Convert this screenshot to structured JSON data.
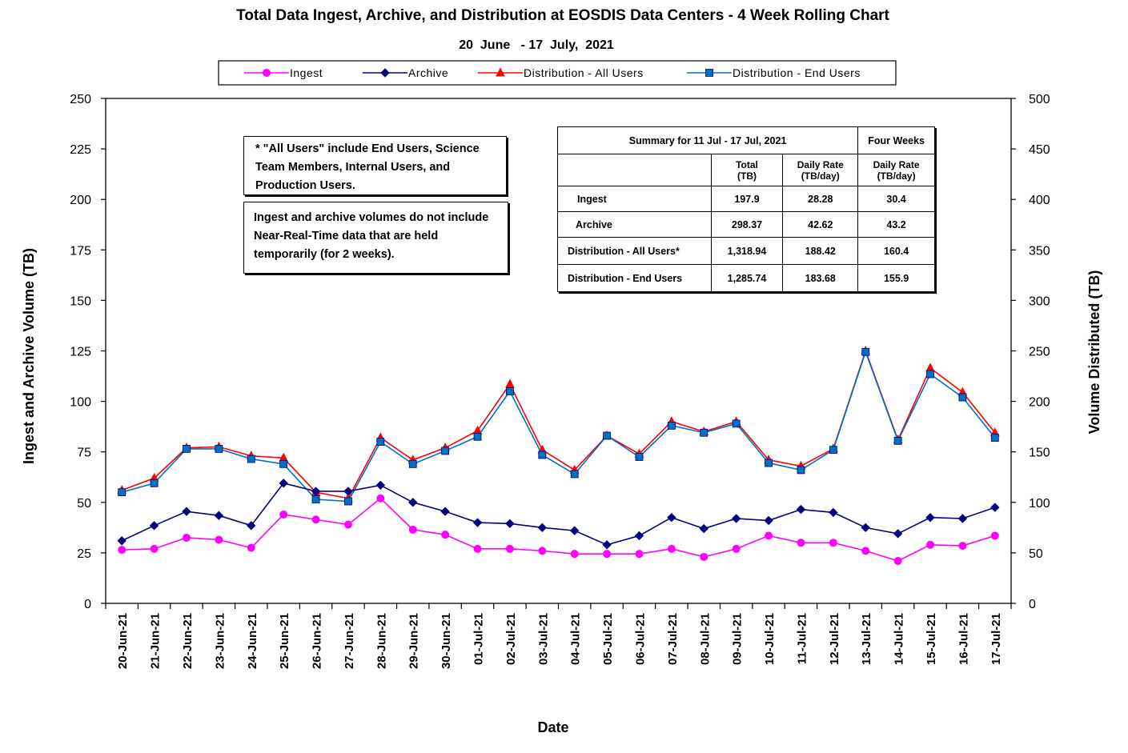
{
  "chart_data": {
    "type": "line",
    "title": "Total Data Ingest, Archive, and  Distribution at EOSDIS Data Centers - 4 Week Rolling Chart",
    "subtitle": "20  June   - 17  July,  2021",
    "xlabel": "Date",
    "ylabel": "Ingest and Archive Volume (TB)",
    "y2label": "Volume Distributed (TB)",
    "ylim": [
      0,
      250
    ],
    "yticks": [
      0,
      25,
      50,
      75,
      100,
      125,
      150,
      175,
      200,
      225,
      250
    ],
    "y2lim": [
      0,
      500
    ],
    "y2ticks": [
      0,
      50,
      100,
      150,
      200,
      250,
      300,
      350,
      400,
      450,
      500
    ],
    "grid": false,
    "legend_position": "top",
    "categories": [
      "20-Jun-21",
      "21-Jun-21",
      "22-Jun-21",
      "23-Jun-21",
      "24-Jun-21",
      "25-Jun-21",
      "26-Jun-21",
      "27-Jun-21",
      "28-Jun-21",
      "29-Jun-21",
      "30-Jun-21",
      "01-Jul-21",
      "02-Jul-21",
      "03-Jul-21",
      "04-Jul-21",
      "05-Jul-21",
      "06-Jul-21",
      "07-Jul-21",
      "08-Jul-21",
      "09-Jul-21",
      "10-Jul-21",
      "11-Jul-21",
      "12-Jul-21",
      "13-Jul-21",
      "14-Jul-21",
      "15-Jul-21",
      "16-Jul-21",
      "17-Jul-21"
    ],
    "series": [
      {
        "name": "Ingest",
        "axis": "left",
        "color": "#ff00ff",
        "marker": "circle",
        "values": [
          26.5,
          27,
          32.5,
          31.5,
          27.5,
          44,
          41.5,
          39,
          52,
          36.5,
          34,
          27,
          27,
          26,
          24.5,
          24.5,
          24.5,
          27,
          23,
          27,
          33.5,
          30,
          30,
          26,
          21,
          29,
          28.5,
          33.5
        ]
      },
      {
        "name": "Archive",
        "axis": "left",
        "color": "#000080",
        "marker": "diamond",
        "values": [
          31,
          38.5,
          45.5,
          43.5,
          38.5,
          59.5,
          55.5,
          55.5,
          58.5,
          50,
          45.5,
          40,
          39.5,
          37.5,
          36,
          29,
          33.5,
          42.5,
          37,
          42,
          41,
          46.5,
          45,
          37.5,
          34.5,
          42.5,
          42,
          47.5
        ]
      },
      {
        "name": "Distribution - All Users",
        "axis": "right",
        "color": "#ff0000",
        "marker": "triangle",
        "values": [
          112,
          124,
          154,
          155,
          146,
          144,
          110,
          104,
          164,
          142,
          154,
          171,
          217,
          152,
          132,
          166,
          148,
          180,
          170,
          180,
          142,
          136,
          153,
          250,
          162,
          233,
          209,
          169
        ]
      },
      {
        "name": "Distribution - End Users",
        "axis": "right",
        "color": "#0070c0",
        "marker": "square",
        "values": [
          110,
          119,
          153,
          153,
          143,
          138,
          103,
          101,
          160,
          138,
          151,
          165,
          210,
          147,
          128,
          166,
          145,
          176,
          169,
          178,
          139,
          132,
          152,
          249,
          161,
          227,
          204,
          164
        ]
      }
    ],
    "annotations": [
      "* \"All Users\" include End Users, Science Team Members,  Internal Users, and Production Users.",
      "Ingest and archive volumes do not include Near-Real-Time data that are held temporarily (for 2 weeks)."
    ]
  },
  "summary_table": {
    "header": "Summary  for  11  Jul   - 17  Jul,  2021",
    "header2": "Four Weeks",
    "col_total": "Total",
    "col_total_unit": "(TB)",
    "col_rate": "Daily Rate",
    "col_rate_unit": "(TB/day)",
    "col_rate4": "Daily Rate",
    "col_rate4_unit": "(TB/day)",
    "rows": [
      {
        "label": "Ingest",
        "total": "197.9",
        "rate": "28.28",
        "rate4": "30.4"
      },
      {
        "label": "Archive",
        "total": "298.37",
        "rate": "42.62",
        "rate4": "43.2"
      },
      {
        "label": "Distribution - All Users*",
        "total": "1,318.94",
        "rate": "188.42",
        "rate4": "160.4"
      },
      {
        "label": "Distribution - End Users",
        "total": "1,285.74",
        "rate": "183.68",
        "rate4": "155.9"
      }
    ]
  }
}
